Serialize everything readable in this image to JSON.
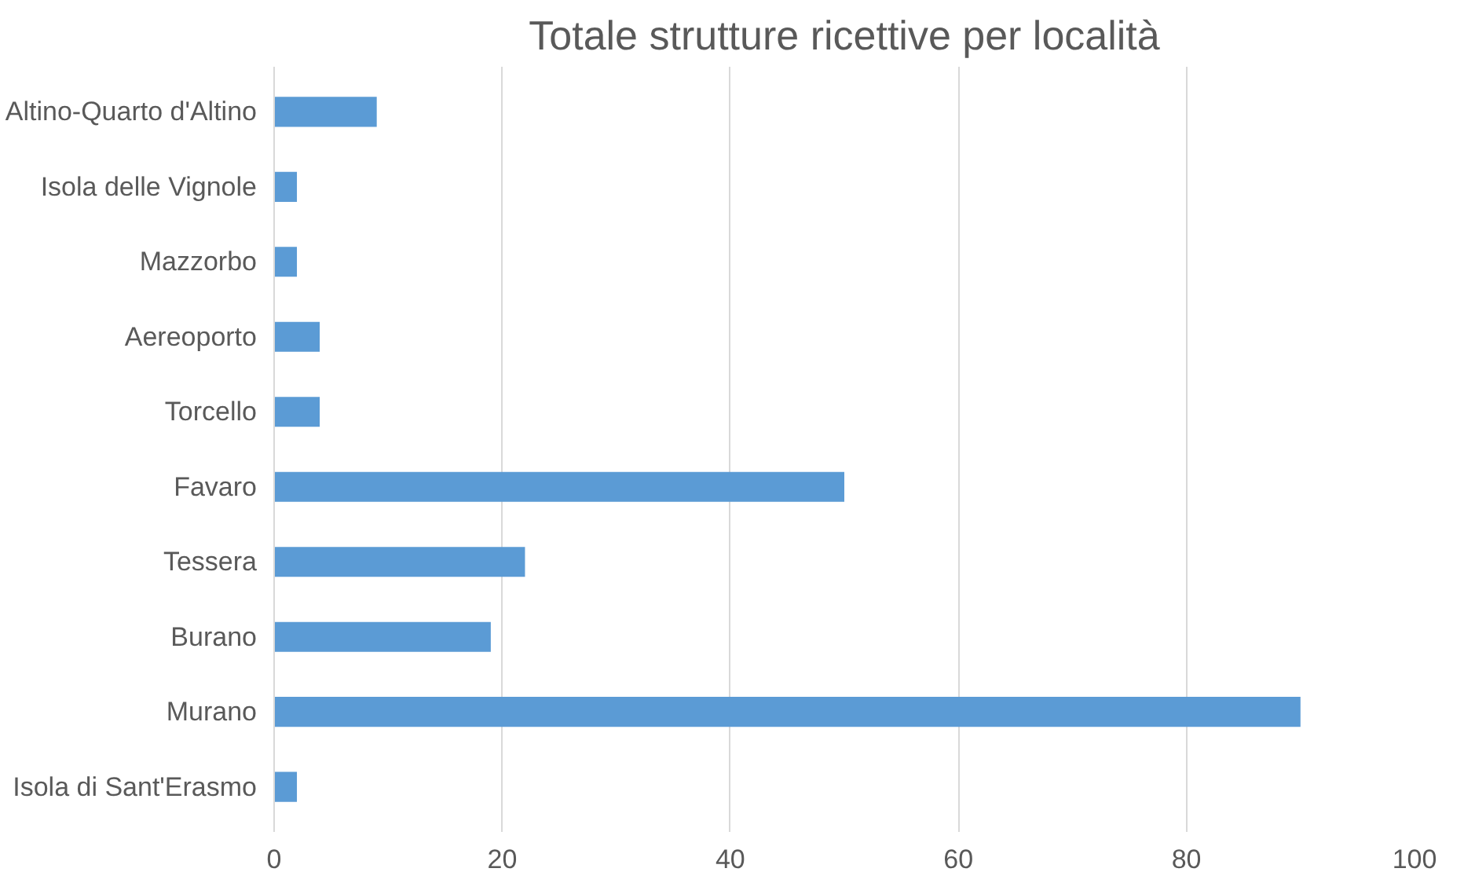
{
  "chart_data": {
    "type": "bar",
    "orientation": "horizontal",
    "title": "Totale strutture ricettive per località",
    "categories": [
      "Altino-Quarto d'Altino",
      "Isola delle Vignole",
      "Mazzorbo",
      "Aereoporto",
      "Torcello",
      "Favaro",
      "Tessera",
      "Burano",
      "Murano",
      "Isola di Sant'Erasmo"
    ],
    "values": [
      9,
      2,
      2,
      4,
      4,
      50,
      22,
      19,
      90,
      2
    ],
    "color": "#5b9bd5",
    "xlim": [
      0,
      100
    ],
    "xticks": [
      0,
      20,
      40,
      60,
      80,
      100
    ],
    "grid": "x"
  }
}
